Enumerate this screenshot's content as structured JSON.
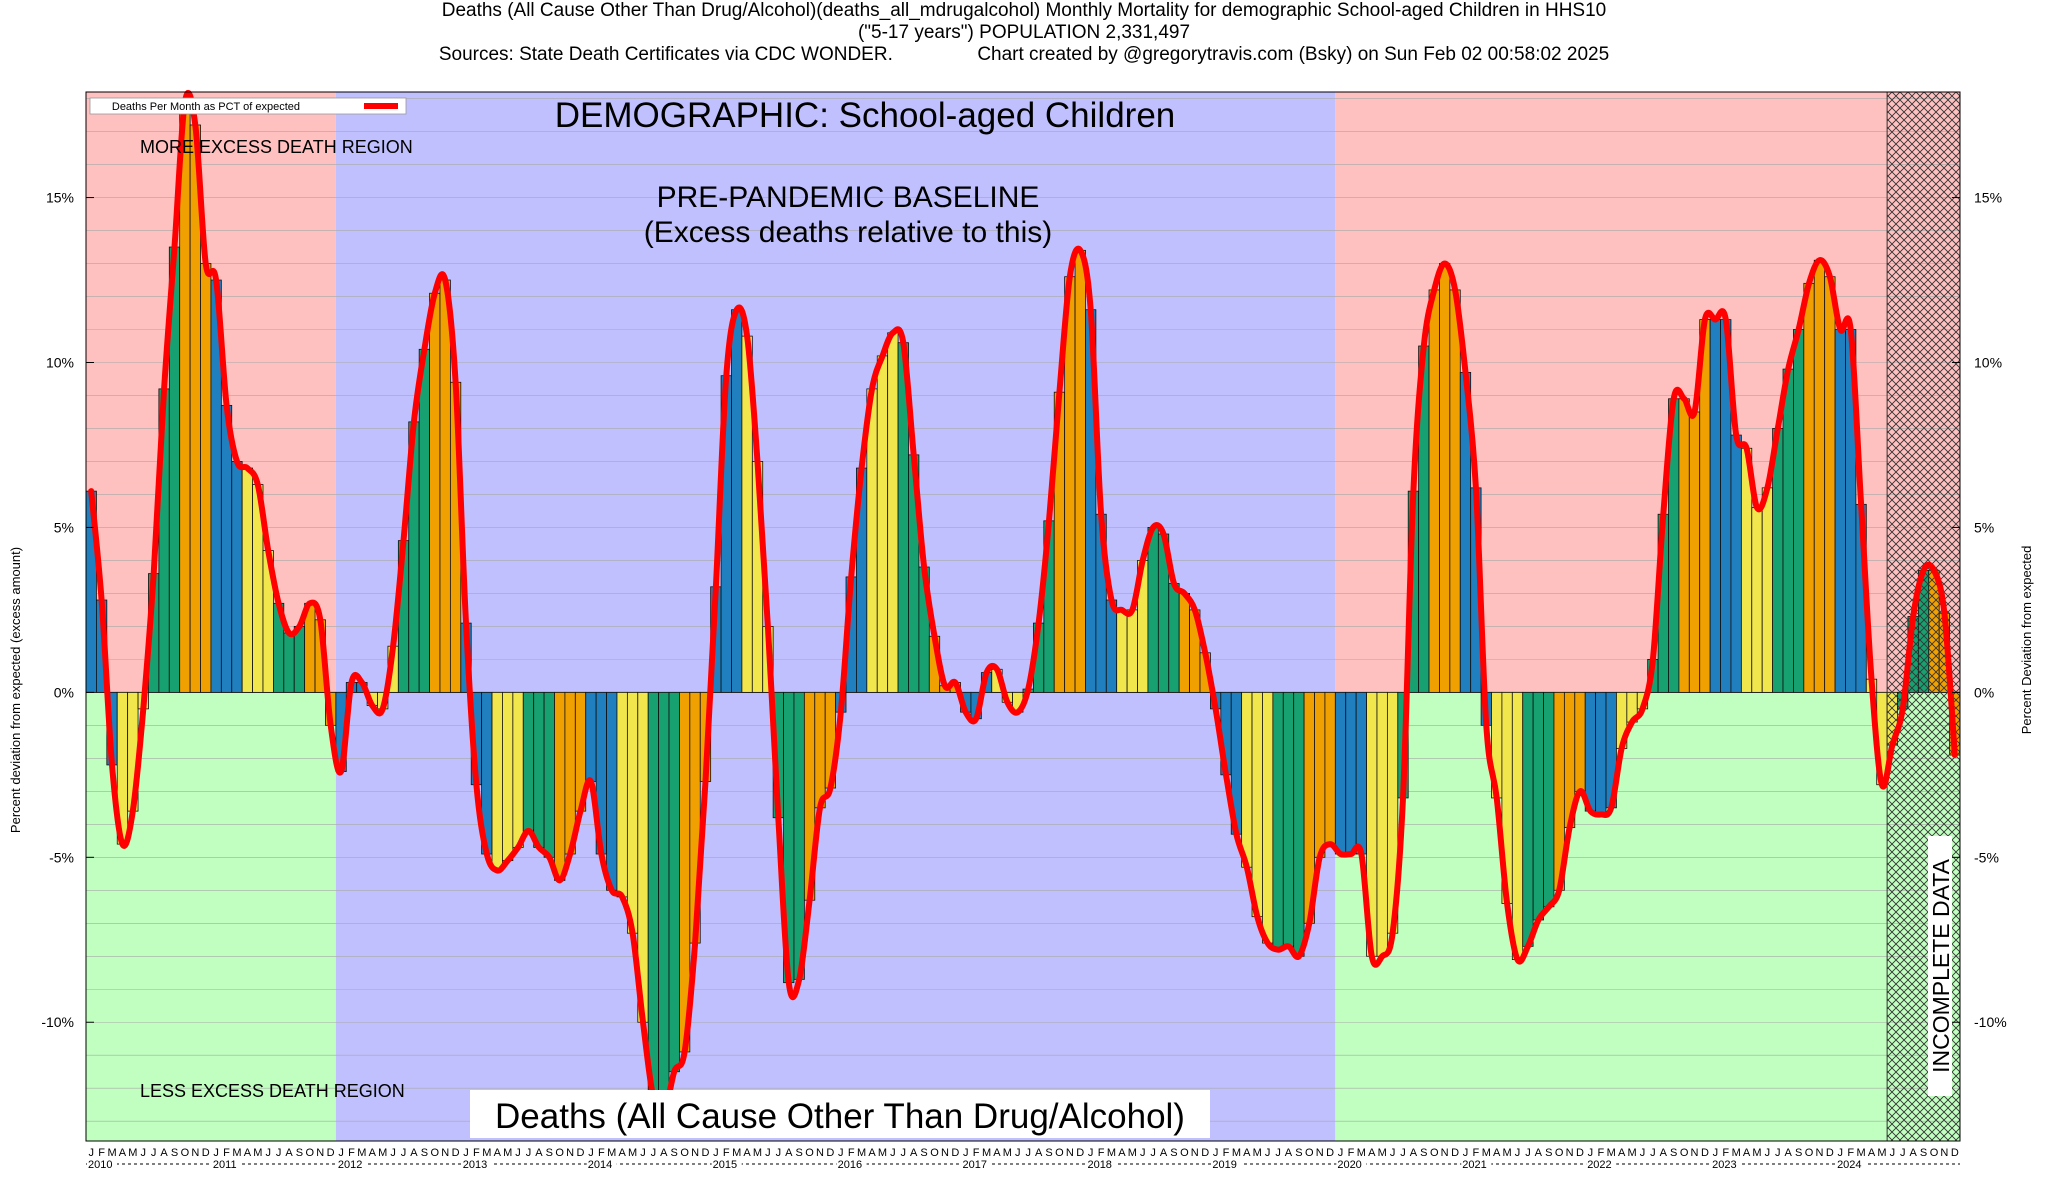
{
  "header": {
    "line1": "Deaths (All Cause Other Than Drug/Alcohol)(deaths_all_mdrugalcohol) Monthly Mortality for demographic School-aged Children in HHS10",
    "line2": "(\"5-17 years\") POPULATION 2,331,497",
    "line3": "Sources: State Death Certificates via CDC WONDER.                Chart created by @gregorytravis.com (Bsky) on Sun Feb 02 00:58:02 2025"
  },
  "colors": {
    "excess_region": "#ffc0c0",
    "less_region": "#c0ffc0",
    "baseline_region": "#c0c0ff",
    "line": "#ff0000",
    "bar_palette": [
      "#1f7fbf",
      "#f2e64d",
      "#17a070",
      "#f0a000"
    ]
  },
  "chart_data": {
    "type": "bar",
    "title": "DEMOGRAPHIC: School-aged Children",
    "bottom_title": "Deaths (All Cause Other Than Drug/Alcohol)",
    "ylabel_left": "Percent deviation from expected (excess amount)",
    "ylabel_right": "Percent Deviation from expected",
    "legend": "Deaths Per Month as PCT of expected",
    "legend_position": "top-left",
    "ylim": [
      -13.6,
      18.2
    ],
    "yticks": [
      15,
      10,
      5,
      0,
      -5,
      -10
    ],
    "ytick_labels": [
      "15%",
      "10%",
      "5%",
      "0%",
      "-5%",
      "-10%"
    ],
    "grid": true,
    "start": "2010-01",
    "month_letters": [
      "J",
      "F",
      "M",
      "A",
      "M",
      "J",
      "J",
      "A",
      "S",
      "O",
      "N",
      "D"
    ],
    "year_labels": [
      "2010",
      "2011",
      "2012",
      "2013",
      "2014",
      "2015",
      "2016",
      "2017",
      "2018",
      "2019",
      "2020",
      "2021",
      "2022",
      "2023",
      "2024"
    ],
    "regions": {
      "upper_label": "MORE EXCESS DEATH REGION",
      "lower_label": "LESS EXCESS DEATH REGION",
      "baseline_label_1": "PRE-PANDEMIC BASELINE",
      "baseline_label_2": "(Excess deaths relative to this)",
      "baseline_start": "2012-01",
      "baseline_end": "2019-12",
      "incomplete_label": "INCOMPLETE DATA",
      "incomplete_start": "2024-06"
    },
    "values": [
      6.1,
      2.8,
      -2.2,
      -4.6,
      -3.6,
      -0.5,
      3.6,
      9.2,
      13.5,
      17.9,
      17.2,
      13.0,
      12.5,
      8.7,
      7.0,
      6.8,
      6.3,
      4.3,
      2.7,
      1.8,
      2.0,
      2.7,
      2.2,
      -1.0,
      -2.4,
      0.3,
      0.3,
      -0.4,
      -0.5,
      1.4,
      4.6,
      8.2,
      10.4,
      12.1,
      12.5,
      9.4,
      2.1,
      -2.8,
      -4.9,
      -5.4,
      -5.1,
      -4.7,
      -4.2,
      -4.7,
      -5.0,
      -5.7,
      -4.9,
      -3.6,
      -2.7,
      -4.9,
      -6.0,
      -6.2,
      -7.3,
      -10.0,
      -12.3,
      -12.8,
      -11.5,
      -10.9,
      -7.6,
      -2.7,
      3.2,
      9.6,
      11.6,
      10.8,
      7.0,
      2.0,
      -3.8,
      -8.8,
      -8.7,
      -6.3,
      -3.5,
      -2.9,
      -0.6,
      3.5,
      6.8,
      9.2,
      10.2,
      10.9,
      10.6,
      7.2,
      3.8,
      1.7,
      0.2,
      0.3,
      -0.6,
      -0.8,
      0.6,
      0.7,
      -0.3,
      -0.6,
      0.1,
      2.1,
      5.2,
      9.1,
      12.6,
      13.4,
      11.6,
      5.4,
      2.8,
      2.5,
      2.5,
      4.0,
      5.0,
      4.8,
      3.3,
      3.0,
      2.5,
      1.2,
      -0.5,
      -2.5,
      -4.3,
      -5.3,
      -6.8,
      -7.6,
      -7.8,
      -7.7,
      -8.0,
      -7.0,
      -5.0,
      -4.6,
      -4.9,
      -4.9,
      -4.9,
      -8.0,
      -8.0,
      -7.3,
      -3.2,
      6.1,
      10.5,
      12.2,
      13.0,
      12.2,
      9.7,
      6.2,
      -1.0,
      -3.2,
      -6.4,
      -8.1,
      -7.7,
      -6.9,
      -6.5,
      -6.0,
      -4.1,
      -3.0,
      -3.6,
      -3.7,
      -3.5,
      -1.7,
      -0.9,
      -0.5,
      1.0,
      5.4,
      8.9,
      8.9,
      8.5,
      11.3,
      11.3,
      11.3,
      7.8,
      7.4,
      5.6,
      6.2,
      8.0,
      9.8,
      11.0,
      12.4,
      13.1,
      12.6,
      11.0,
      11.0,
      5.7,
      0.4,
      -2.8,
      -1.6,
      -0.5,
      2.3,
      3.7,
      3.7,
      2.4,
      -1.9
    ]
  }
}
